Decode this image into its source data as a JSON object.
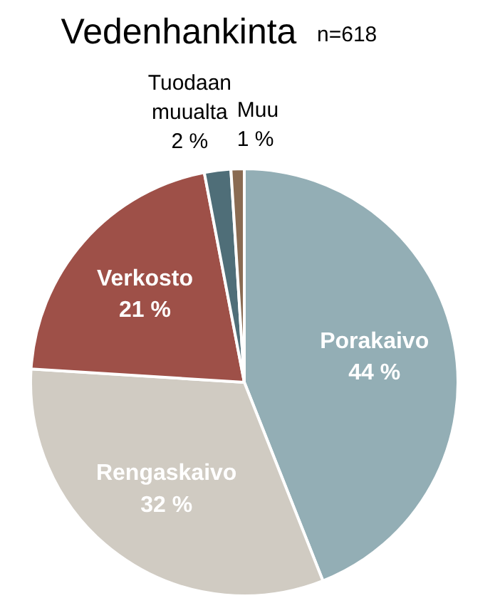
{
  "chart_data": {
    "type": "pie",
    "title": "Vedenhankinta",
    "subtitle": "n=618",
    "categories": [
      "Porakaivo",
      "Rengaskaivo",
      "Verkosto",
      "Tuodaan muualta",
      "Muu"
    ],
    "values": [
      44,
      32,
      21,
      2,
      1
    ],
    "value_labels": [
      "44 %",
      "32 %",
      "21 %",
      "2 %",
      "1 %"
    ],
    "colors": [
      "#93aeb5",
      "#d0cbc2",
      "#9e5048",
      "#4f6e78",
      "#8a6b52"
    ]
  }
}
